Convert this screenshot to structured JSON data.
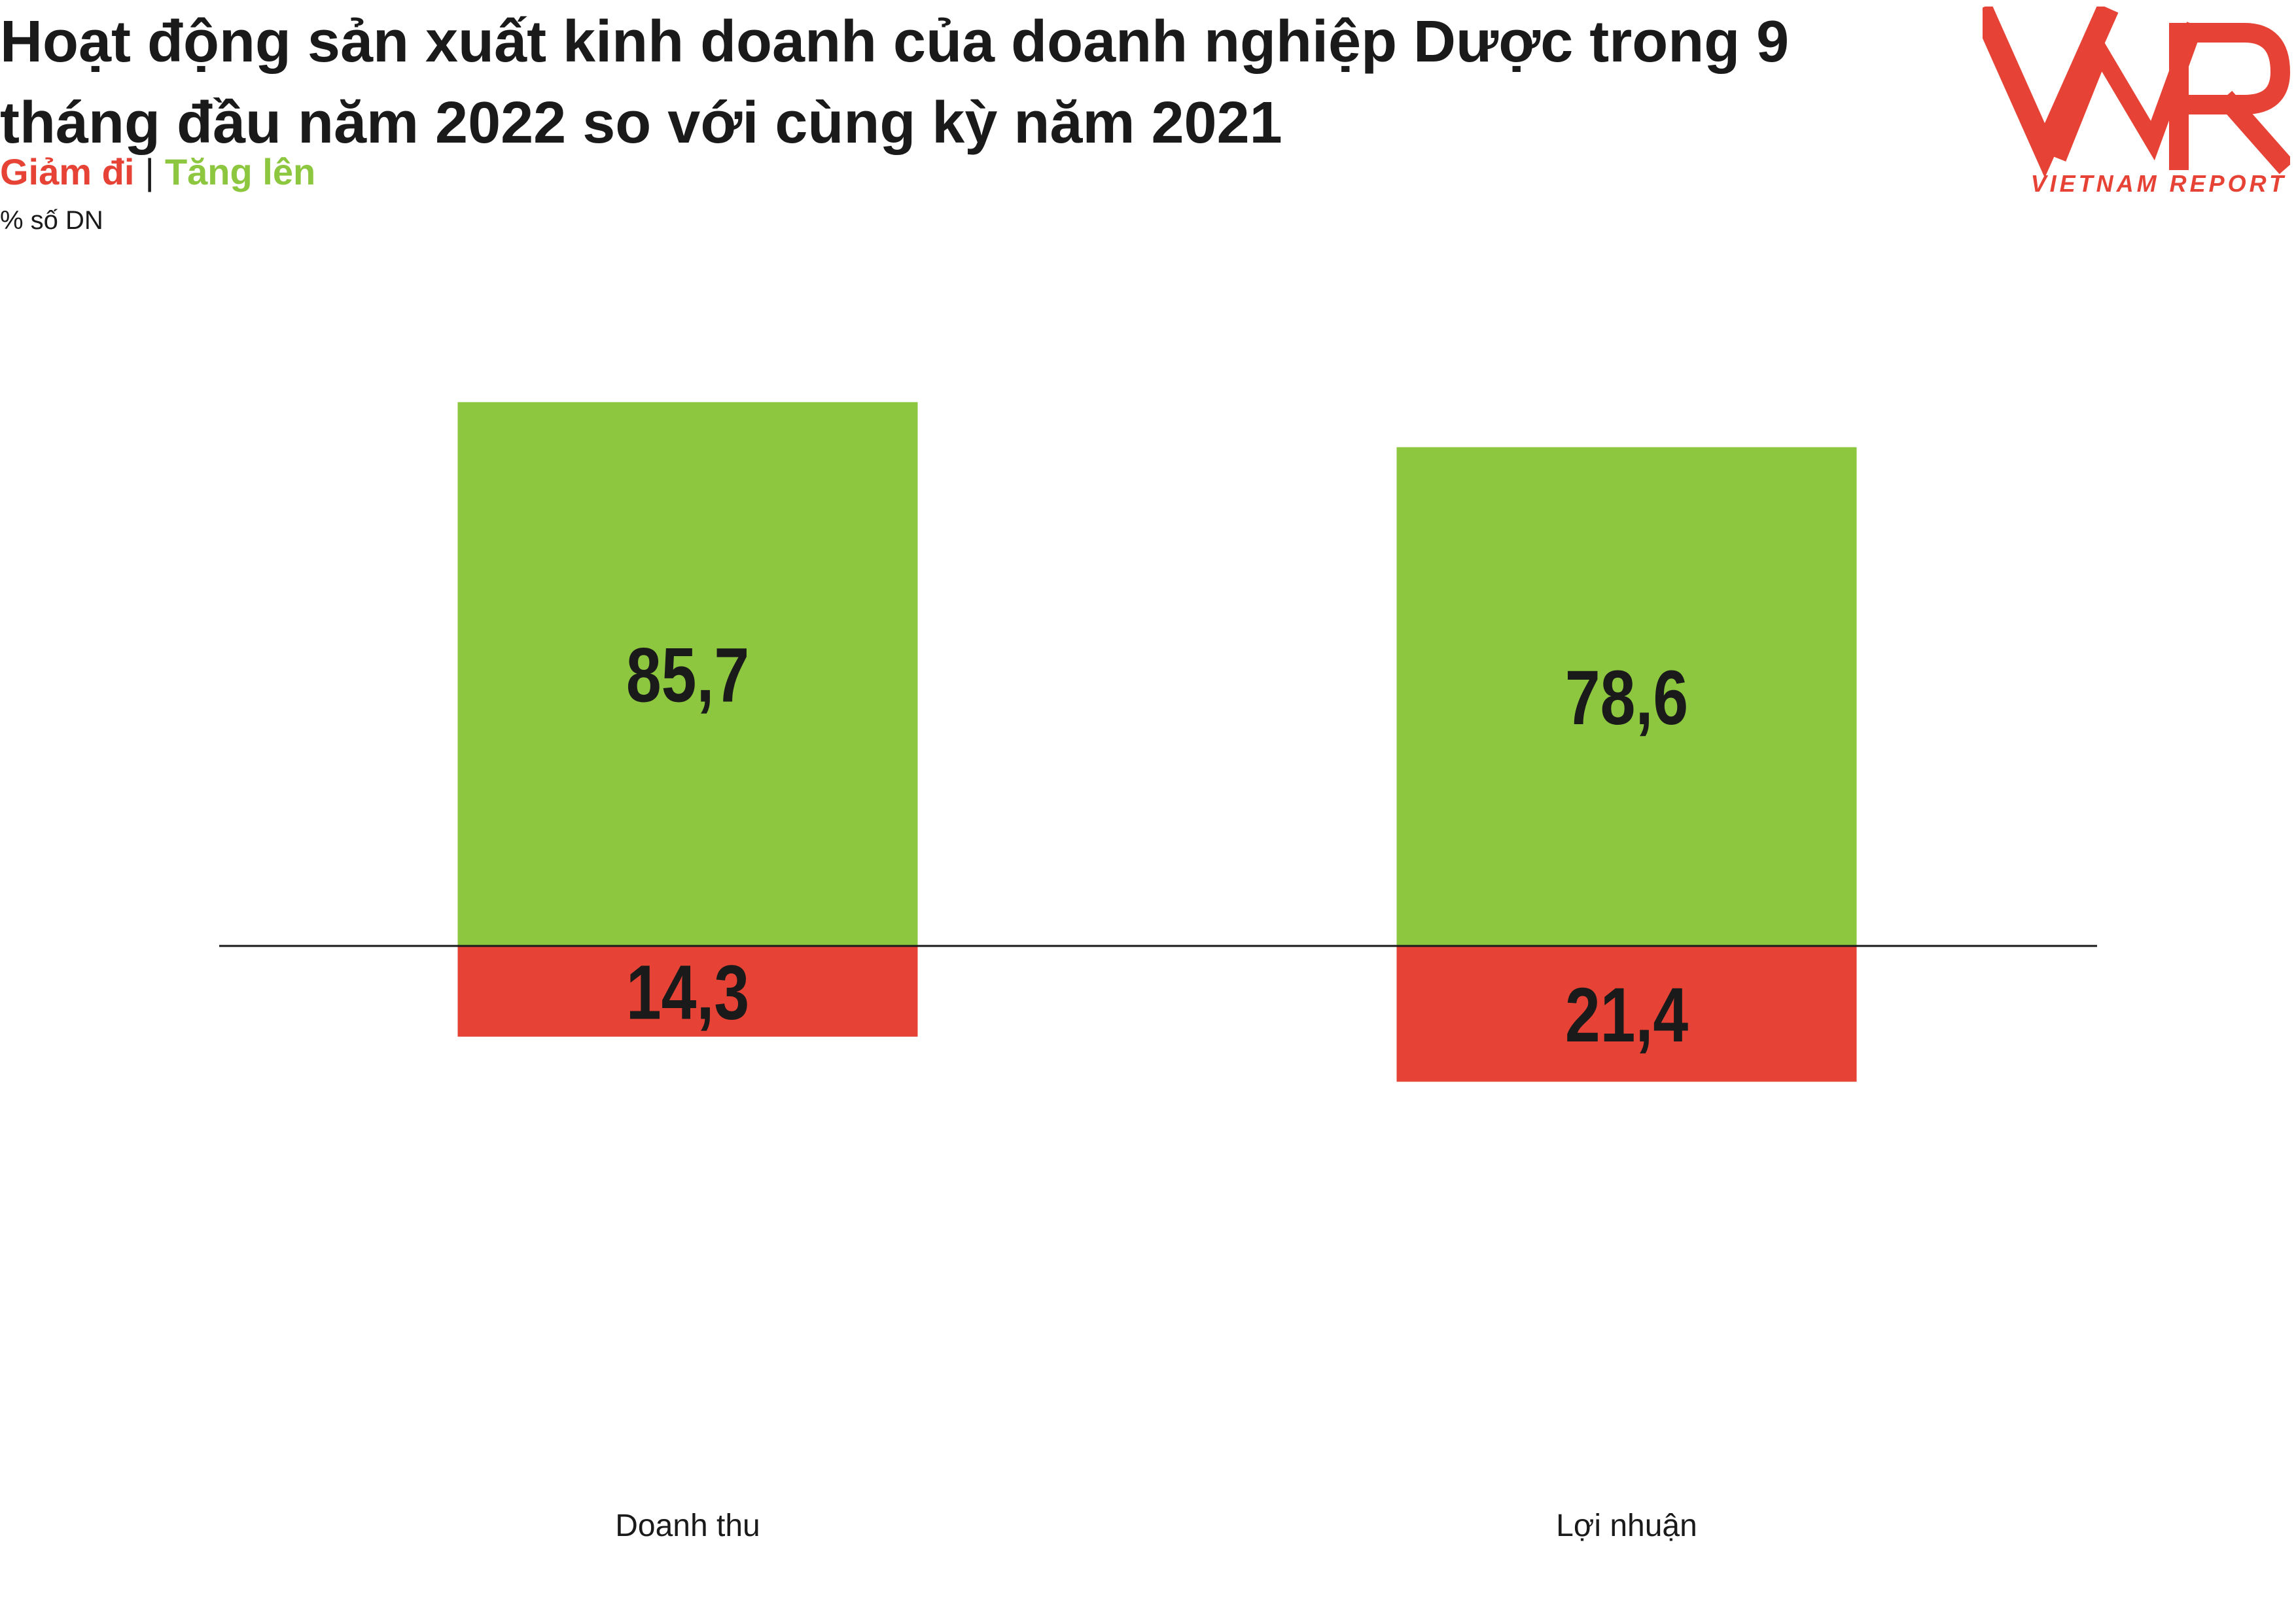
{
  "header": {
    "title": "Hoạt động sản xuất kinh doanh của doanh nghiệp Dược trong 9 tháng đầu năm 2022 so với cùng kỳ năm 2021",
    "legend_decrease": "Giảm đi",
    "legend_separator": "|",
    "legend_increase": "Tăng lên",
    "unit": "% số DN"
  },
  "logo": {
    "text": "VNR",
    "tagline": "VIETNAM REPORT"
  },
  "colors": {
    "increase": "#8dc63f",
    "decrease": "#e64336",
    "text": "#1a1a1a",
    "logo": "#e64336"
  },
  "chart_data": {
    "type": "bar",
    "subtype": "diverging-stacked",
    "categories": [
      "Doanh thu",
      "Lợi nhuận"
    ],
    "series": [
      {
        "name": "Tăng lên",
        "values": [
          85.7,
          78.6
        ],
        "labels": [
          "85,7",
          "78,6"
        ],
        "direction": "up"
      },
      {
        "name": "Giảm đi",
        "values": [
          14.3,
          21.4
        ],
        "labels": [
          "14,3",
          "21,4"
        ],
        "direction": "down"
      }
    ],
    "title": "Hoạt động sản xuất kinh doanh của doanh nghiệp Dược trong 9 tháng đầu năm 2022 so với cùng kỳ năm 2021",
    "ylabel": "% số DN",
    "ylim": [
      -21.4,
      85.7
    ],
    "grid": false,
    "legend": "top-left"
  }
}
